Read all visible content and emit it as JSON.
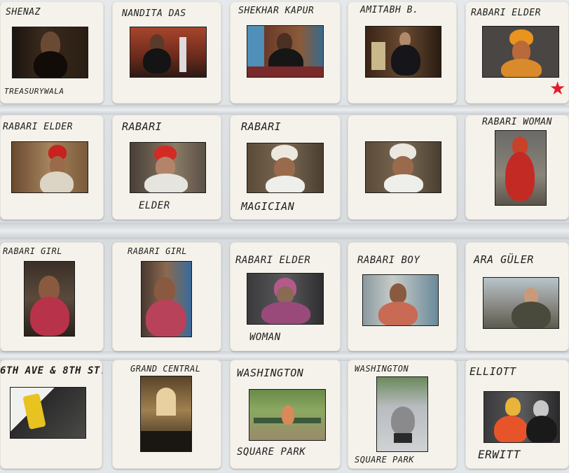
{
  "slides": [
    {
      "top": "SHENAZ",
      "bottom": "TREASURYWALA",
      "mark": ""
    },
    {
      "top": "NANDITA DAS",
      "bottom": "",
      "mark": ""
    },
    {
      "top": "SHEKHAR KAPUR",
      "bottom": "",
      "mark": ""
    },
    {
      "top": "AMITABH B.",
      "bottom": "",
      "mark": ""
    },
    {
      "top": "RABARI ELDER",
      "bottom": "",
      "mark": "★"
    },
    {
      "top": "RABARI ELDER",
      "bottom": "",
      "mark": ""
    },
    {
      "top": "RABARI",
      "bottom": "ELDER",
      "mark": ""
    },
    {
      "top": "RABARI",
      "bottom": "MAGICIAN",
      "mark": ""
    },
    {
      "top": "",
      "bottom": "",
      "mark": ""
    },
    {
      "top": "RABARI WOMAN",
      "bottom": "",
      "mark": ""
    },
    {
      "top": "RABARI GIRL",
      "bottom": "",
      "mark": ""
    },
    {
      "top": "RABARI GIRL",
      "bottom": "",
      "mark": ""
    },
    {
      "top": "RABARI ELDER",
      "bottom": "WOMAN",
      "mark": ""
    },
    {
      "top": "RABARI BOY",
      "bottom": "",
      "mark": ""
    },
    {
      "top": "ARA GÜLER",
      "bottom": "",
      "mark": ""
    },
    {
      "top": "6TH AVE & 8TH ST.",
      "bottom": "",
      "mark": ""
    },
    {
      "top": "GRAND CENTRAL",
      "bottom": "",
      "mark": ""
    },
    {
      "top": "WASHINGTON",
      "bottom": "SQUARE PARK",
      "mark": ""
    },
    {
      "top": "WASHINGTON",
      "bottom": "SQUARE PARK",
      "mark": ""
    },
    {
      "top": "ELLIOTT",
      "bottom": "ERWITT",
      "mark": ""
    }
  ]
}
